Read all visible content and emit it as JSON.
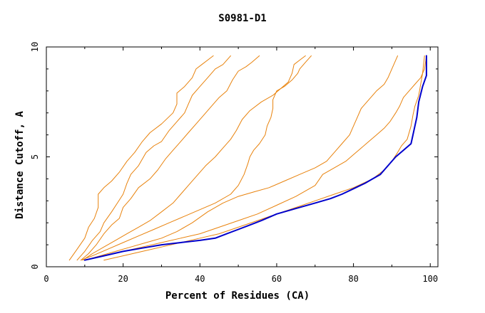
{
  "chart_data": {
    "type": "line",
    "title": "S0981-D1",
    "xlabel": "Percent of Residues (CA)",
    "ylabel": "Distance Cutoff, A",
    "xlim": [
      0,
      102
    ],
    "ylim": [
      0,
      10
    ],
    "xticks": [
      0,
      20,
      40,
      60,
      80,
      100
    ],
    "yticks": [
      0,
      5,
      10
    ],
    "grid": false,
    "legend": "none",
    "colors": {
      "models": "#e8820c",
      "highlight": "#0000cc"
    },
    "series": [
      {
        "role": "model",
        "x": [
          6.0,
          8.0,
          10.0,
          11.0,
          12.5,
          13.5,
          13.5,
          15.0,
          17.0,
          19.0,
          21.0,
          23.0,
          25.0,
          27.0,
          30.0,
          33.0,
          34.0,
          34.0,
          36.0,
          38.0,
          39.0,
          40.5,
          42.0,
          43.5
        ],
        "y": [
          0.3,
          0.8,
          1.3,
          1.8,
          2.2,
          2.7,
          3.3,
          3.6,
          3.9,
          4.3,
          4.8,
          5.2,
          5.7,
          6.1,
          6.5,
          7.0,
          7.4,
          7.9,
          8.2,
          8.6,
          9.0,
          9.2,
          9.4,
          9.6
        ]
      },
      {
        "role": "model",
        "x": [
          8.0,
          10.0,
          12.0,
          14.0,
          15.0,
          17.0,
          18.5,
          20.0,
          21.0,
          22.0,
          24.0,
          26.0,
          28.0,
          30.0,
          32.0,
          34.0,
          36.0,
          37.0,
          38.0,
          40.0,
          42.0,
          44.0,
          46.0,
          48.0
        ],
        "y": [
          0.3,
          0.7,
          1.2,
          1.6,
          2.0,
          2.5,
          2.9,
          3.3,
          3.8,
          4.2,
          4.6,
          5.2,
          5.5,
          5.7,
          6.2,
          6.6,
          7.0,
          7.4,
          7.8,
          8.2,
          8.6,
          9.0,
          9.2,
          9.6
        ]
      },
      {
        "role": "model",
        "x": [
          9.0,
          11.0,
          13.0,
          15.0,
          17.0,
          19.0,
          20.0,
          22.0,
          24.0,
          27.0,
          29.0,
          31.0,
          33.0,
          35.0,
          37.0,
          39.0,
          41.0,
          43.0,
          45.0,
          47.0,
          48.5,
          50.0,
          52.0,
          53.5,
          55.5
        ],
        "y": [
          0.3,
          0.6,
          1.0,
          1.5,
          1.9,
          2.2,
          2.7,
          3.1,
          3.6,
          4.0,
          4.4,
          4.9,
          5.3,
          5.7,
          6.1,
          6.5,
          6.9,
          7.3,
          7.7,
          8.0,
          8.5,
          8.9,
          9.1,
          9.3,
          9.6
        ]
      },
      {
        "role": "model",
        "x": [
          9.5,
          12.0,
          15.0,
          18.0,
          21.0,
          24.0,
          27.0,
          30.0,
          33.0,
          35.0,
          37.0,
          39.0,
          41.5,
          44.0,
          46.0,
          48.0,
          49.5,
          51.0,
          53.0,
          56.0,
          59.0,
          61.0,
          63.0,
          64.0,
          64.5,
          66.0,
          67.5
        ],
        "y": [
          0.3,
          0.6,
          0.9,
          1.2,
          1.5,
          1.8,
          2.1,
          2.5,
          2.9,
          3.3,
          3.7,
          4.1,
          4.6,
          5.0,
          5.4,
          5.8,
          6.2,
          6.7,
          7.1,
          7.5,
          7.8,
          8.1,
          8.4,
          8.8,
          9.2,
          9.4,
          9.6
        ]
      },
      {
        "role": "model",
        "x": [
          9.0,
          12.0,
          16.0,
          20.0,
          24.0,
          28.0,
          32.0,
          36.0,
          40.0,
          44.0,
          48.0,
          50.0,
          51.5,
          52.5,
          53.0,
          54.0,
          55.5,
          57.0,
          57.5,
          58.5,
          59.0,
          59.0,
          60.0,
          62.0,
          64.0,
          65.5,
          66.0,
          67.5,
          69.0
        ],
        "y": [
          0.3,
          0.5,
          0.8,
          1.1,
          1.4,
          1.7,
          2.0,
          2.3,
          2.6,
          2.9,
          3.3,
          3.7,
          4.2,
          4.7,
          5.0,
          5.3,
          5.6,
          6.0,
          6.4,
          6.8,
          7.2,
          7.6,
          8.0,
          8.2,
          8.5,
          8.8,
          9.0,
          9.3,
          9.6
        ]
      },
      {
        "role": "model",
        "x": [
          10.0,
          14.0,
          18.0,
          22.0,
          26.0,
          30.0,
          34.0,
          38.0,
          42.0,
          46.0,
          50.0,
          54.0,
          58.0,
          62.0,
          66.0,
          70.0,
          73.0,
          75.0,
          77.0,
          79.0,
          80.0,
          81.0,
          82.0,
          84.0,
          86.0,
          88.0,
          89.0,
          90.0,
          91.5
        ],
        "y": [
          0.3,
          0.5,
          0.7,
          0.9,
          1.1,
          1.3,
          1.6,
          2.0,
          2.5,
          2.9,
          3.2,
          3.4,
          3.6,
          3.9,
          4.2,
          4.5,
          4.8,
          5.2,
          5.6,
          6.0,
          6.4,
          6.8,
          7.2,
          7.6,
          8.0,
          8.3,
          8.6,
          9.0,
          9.6
        ]
      },
      {
        "role": "model",
        "x": [
          10.0,
          15.0,
          20.0,
          25.0,
          30.0,
          35.0,
          40.0,
          45.0,
          50.0,
          55.0,
          60.0,
          65.0,
          70.0,
          72.0,
          75.0,
          78.0,
          80.0,
          82.0,
          84.0,
          86.0,
          88.0,
          89.5,
          91.0,
          92.0,
          93.0,
          94.5,
          96.0,
          97.5,
          98.5,
          99.0
        ],
        "y": [
          0.3,
          0.5,
          0.7,
          0.9,
          1.1,
          1.3,
          1.5,
          1.8,
          2.1,
          2.4,
          2.8,
          3.2,
          3.7,
          4.2,
          4.5,
          4.8,
          5.1,
          5.4,
          5.7,
          6.0,
          6.3,
          6.6,
          7.0,
          7.3,
          7.7,
          8.0,
          8.3,
          8.6,
          9.0,
          9.6
        ]
      },
      {
        "role": "model",
        "x": [
          15.0,
          20.0,
          25.0,
          30.0,
          35.0,
          40.0,
          45.0,
          50.0,
          55.0,
          60.0,
          65.0,
          70.0,
          75.0,
          80.0,
          85.0,
          88.0,
          90.0,
          91.5,
          92.5,
          94.0,
          95.0,
          95.5,
          96.0,
          97.0,
          97.5,
          98.0,
          98.5
        ],
        "y": [
          0.3,
          0.5,
          0.7,
          0.9,
          1.1,
          1.3,
          1.5,
          1.8,
          2.1,
          2.4,
          2.7,
          3.0,
          3.3,
          3.6,
          4.0,
          4.4,
          4.8,
          5.2,
          5.5,
          5.8,
          6.4,
          6.9,
          7.3,
          7.8,
          8.3,
          8.8,
          9.6
        ]
      },
      {
        "role": "highlight",
        "x": [
          10.0,
          15.0,
          20.0,
          25.0,
          30.0,
          35.0,
          40.0,
          44.0,
          47.0,
          50.0,
          53.0,
          56.0,
          60.0,
          65.0,
          70.0,
          74.0,
          77.0,
          80.0,
          83.0,
          85.0,
          87.0,
          89.0,
          91.0,
          93.0,
          95.0,
          95.5,
          96.0,
          96.5,
          97.0,
          98.0,
          99.0,
          99.0
        ],
        "y": [
          0.3,
          0.5,
          0.7,
          0.85,
          1.0,
          1.1,
          1.2,
          1.3,
          1.5,
          1.7,
          1.9,
          2.1,
          2.4,
          2.65,
          2.9,
          3.1,
          3.3,
          3.55,
          3.8,
          4.0,
          4.2,
          4.6,
          5.0,
          5.3,
          5.6,
          6.0,
          6.4,
          6.8,
          7.5,
          8.2,
          8.7,
          9.6
        ]
      }
    ]
  }
}
